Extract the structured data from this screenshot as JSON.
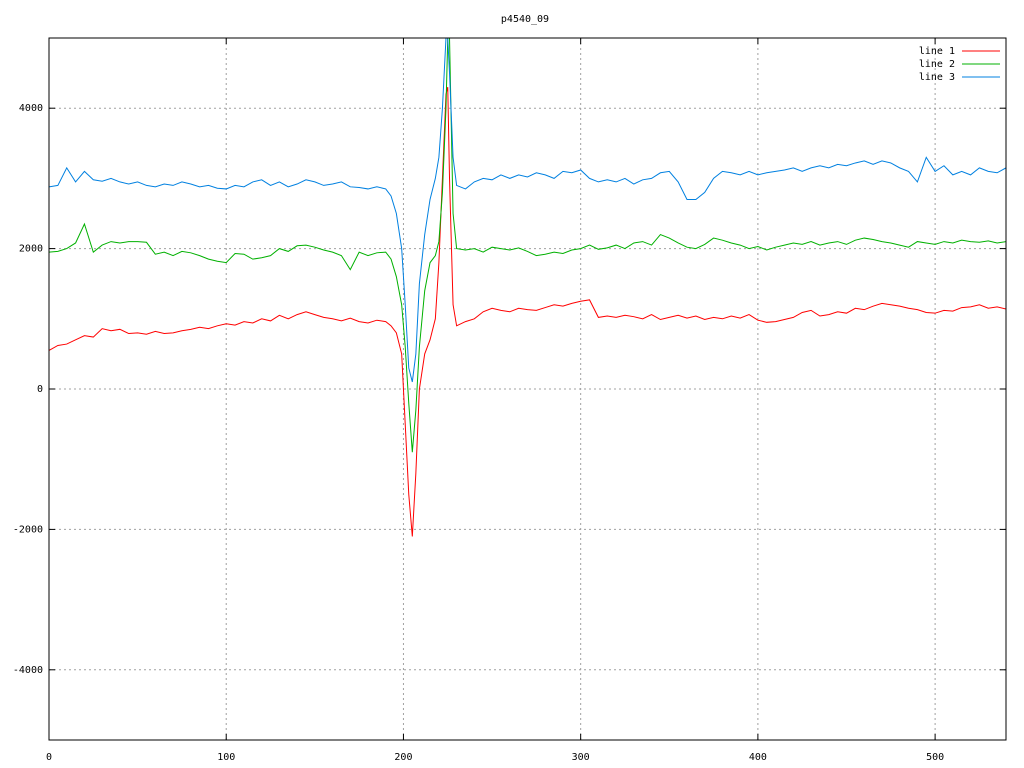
{
  "chart_data": {
    "type": "line",
    "title": "p4540_09",
    "x": [
      0,
      5,
      10,
      15,
      20,
      25,
      30,
      35,
      40,
      45,
      50,
      55,
      60,
      65,
      70,
      75,
      80,
      85,
      90,
      95,
      100,
      105,
      110,
      115,
      120,
      125,
      130,
      135,
      140,
      145,
      150,
      155,
      160,
      165,
      170,
      175,
      180,
      185,
      190,
      193,
      196,
      199,
      201,
      203,
      205,
      207,
      209,
      212,
      215,
      218,
      220,
      222,
      224,
      225,
      226,
      228,
      230,
      235,
      240,
      245,
      250,
      255,
      260,
      265,
      270,
      275,
      280,
      285,
      290,
      295,
      300,
      305,
      310,
      315,
      320,
      325,
      330,
      335,
      340,
      345,
      350,
      355,
      360,
      365,
      370,
      375,
      380,
      385,
      390,
      395,
      400,
      405,
      410,
      415,
      420,
      425,
      430,
      435,
      440,
      445,
      450,
      455,
      460,
      465,
      470,
      475,
      480,
      485,
      490,
      495,
      500,
      505,
      510,
      515,
      520,
      525,
      530,
      535,
      540
    ],
    "series": [
      {
        "name": "line 1",
        "color": "#ff0000",
        "values": [
          550,
          620,
          640,
          700,
          760,
          740,
          860,
          830,
          850,
          790,
          800,
          780,
          820,
          790,
          800,
          830,
          850,
          880,
          860,
          900,
          930,
          910,
          960,
          940,
          1000,
          970,
          1050,
          1000,
          1060,
          1100,
          1060,
          1020,
          1000,
          970,
          1010,
          960,
          940,
          980,
          960,
          900,
          800,
          500,
          -500,
          -1500,
          -2100,
          -1200,
          0,
          500,
          700,
          1000,
          1800,
          3000,
          4200,
          4300,
          3000,
          1200,
          900,
          960,
          1000,
          1100,
          1150,
          1120,
          1100,
          1150,
          1130,
          1120,
          1160,
          1200,
          1180,
          1220,
          1250,
          1270,
          1020,
          1040,
          1020,
          1050,
          1030,
          1000,
          1060,
          990,
          1020,
          1050,
          1010,
          1040,
          990,
          1020,
          1000,
          1040,
          1010,
          1060,
          980,
          950,
          960,
          990,
          1020,
          1090,
          1120,
          1040,
          1060,
          1100,
          1080,
          1150,
          1130,
          1180,
          1220,
          1200,
          1180,
          1150,
          1130,
          1090,
          1080,
          1120,
          1110,
          1160,
          1170,
          1200,
          1150,
          1170,
          1140
        ]
      },
      {
        "name": "line 2",
        "color": "#00b000",
        "values": [
          1950,
          1960,
          2000,
          2080,
          2350,
          1950,
          2050,
          2100,
          2080,
          2100,
          2100,
          2090,
          1920,
          1950,
          1900,
          1960,
          1940,
          1900,
          1850,
          1820,
          1800,
          1930,
          1920,
          1850,
          1870,
          1900,
          2000,
          1960,
          2040,
          2050,
          2020,
          1980,
          1950,
          1900,
          1700,
          1950,
          1900,
          1940,
          1950,
          1850,
          1600,
          1200,
          600,
          -200,
          -900,
          -300,
          600,
          1400,
          1800,
          1900,
          2100,
          2800,
          4000,
          5000,
          5000,
          2500,
          2000,
          1980,
          2000,
          1950,
          2020,
          2000,
          1980,
          2010,
          1960,
          1900,
          1920,
          1950,
          1930,
          1980,
          2000,
          2050,
          1990,
          2010,
          2050,
          2000,
          2080,
          2100,
          2050,
          2200,
          2150,
          2080,
          2020,
          2000,
          2060,
          2150,
          2120,
          2080,
          2050,
          2000,
          2030,
          1980,
          2020,
          2050,
          2080,
          2060,
          2100,
          2050,
          2080,
          2100,
          2060,
          2120,
          2150,
          2130,
          2100,
          2080,
          2050,
          2020,
          2100,
          2080,
          2060,
          2100,
          2080,
          2120,
          2100,
          2090,
          2110,
          2080,
          2100
        ]
      },
      {
        "name": "line 3",
        "color": "#0080e0",
        "values": [
          2880,
          2900,
          3150,
          2950,
          3100,
          2980,
          2960,
          3000,
          2950,
          2920,
          2950,
          2900,
          2880,
          2920,
          2900,
          2950,
          2920,
          2880,
          2900,
          2860,
          2850,
          2900,
          2880,
          2950,
          2980,
          2900,
          2950,
          2880,
          2920,
          2980,
          2950,
          2900,
          2920,
          2950,
          2880,
          2870,
          2850,
          2880,
          2850,
          2750,
          2500,
          2000,
          1200,
          300,
          100,
          500,
          1500,
          2200,
          2700,
          3000,
          3300,
          4000,
          5000,
          5000,
          4500,
          3300,
          2900,
          2850,
          2950,
          3000,
          2980,
          3050,
          3000,
          3050,
          3020,
          3080,
          3050,
          3000,
          3100,
          3080,
          3120,
          3000,
          2950,
          2980,
          2950,
          3000,
          2920,
          2980,
          3000,
          3080,
          3100,
          2950,
          2700,
          2700,
          2800,
          3000,
          3100,
          3080,
          3050,
          3100,
          3050,
          3080,
          3100,
          3120,
          3150,
          3100,
          3150,
          3180,
          3150,
          3200,
          3180,
          3220,
          3250,
          3200,
          3250,
          3220,
          3150,
          3100,
          2950,
          3300,
          3100,
          3180,
          3050,
          3100,
          3050,
          3150,
          3100,
          3080,
          3150
        ]
      }
    ],
    "xlim": [
      0,
      540
    ],
    "ylim": [
      -5000,
      5000
    ],
    "xticks": [
      0,
      100,
      200,
      300,
      400,
      500
    ],
    "yticks": [
      -4000,
      -2000,
      0,
      2000,
      4000
    ],
    "grid": true,
    "legend": "top-right"
  }
}
